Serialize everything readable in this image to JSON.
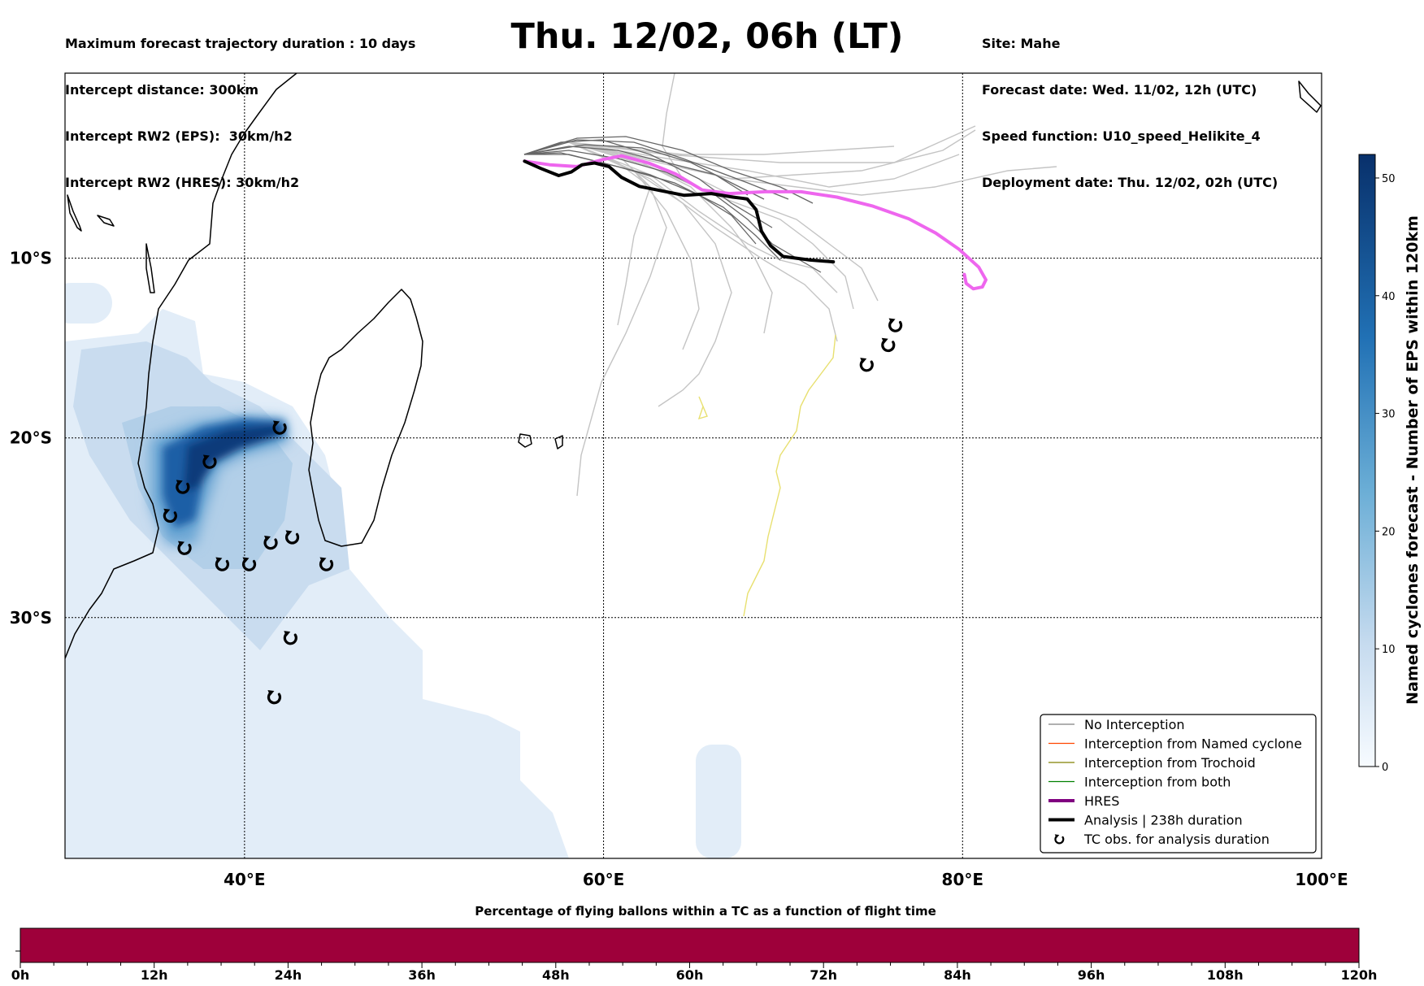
{
  "header": {
    "left_lines": [
      "Maximum forecast trajectory duration : 10 days",
      "Intercept distance: 300km",
      "Intercept RW2 (EPS):  30km/h2",
      "Intercept RW2 (HRES): 30km/h2"
    ],
    "title": "Thu. 12/02, 06h (LT)",
    "right_lines": [
      "Site: Mahe",
      "Forecast date: Wed. 11/02, 12h (UTC)",
      "Speed function: U10_speed_Helikite_4",
      "Deployment date: Thu. 12/02, 02h (UTC)"
    ]
  },
  "map": {
    "lon_range": [
      30,
      100
    ],
    "lat_range": [
      -43.4,
      0.3
    ],
    "lon_ticks": [
      {
        "value": 40,
        "label": "40°E"
      },
      {
        "value": 60,
        "label": "60°E"
      },
      {
        "value": 80,
        "label": "80°E"
      },
      {
        "value": 100,
        "label": "100°E"
      }
    ],
    "lat_ticks": [
      {
        "value": -10,
        "label": "10°S"
      },
      {
        "value": -20,
        "label": "20°S"
      },
      {
        "value": -30,
        "label": "30°S"
      }
    ],
    "hres_track": [
      [
        55.6,
        -4.6
      ],
      [
        57,
        -4.8
      ],
      [
        58.5,
        -4.9
      ],
      [
        60,
        -4.5
      ],
      [
        61,
        -4.3
      ],
      [
        62.5,
        -4.7
      ],
      [
        64,
        -5.3
      ],
      [
        65.5,
        -6.2
      ],
      [
        67,
        -6.4
      ],
      [
        69,
        -6.3
      ],
      [
        71,
        -6.3
      ],
      [
        73,
        -6.6
      ],
      [
        75,
        -7.1
      ],
      [
        77,
        -7.8
      ],
      [
        78.5,
        -8.6
      ],
      [
        79.8,
        -9.5
      ],
      [
        80.9,
        -10.5
      ],
      [
        81.3,
        -11.2
      ],
      [
        81.1,
        -11.6
      ],
      [
        80.6,
        -11.7
      ],
      [
        80.2,
        -11.4
      ],
      [
        80.1,
        -10.9
      ]
    ],
    "analysis_track": [
      [
        55.6,
        -4.6
      ],
      [
        56.5,
        -5.0
      ],
      [
        57.5,
        -5.4
      ],
      [
        58.2,
        -5.2
      ],
      [
        58.8,
        -4.8
      ],
      [
        59.5,
        -4.7
      ],
      [
        60.3,
        -4.9
      ],
      [
        61,
        -5.5
      ],
      [
        62,
        -6.0
      ],
      [
        63.5,
        -6.3
      ],
      [
        64.5,
        -6.5
      ],
      [
        66,
        -6.4
      ],
      [
        67.2,
        -6.6
      ],
      [
        68,
        -6.7
      ],
      [
        68.5,
        -7.3
      ],
      [
        68.8,
        -8.5
      ],
      [
        69.3,
        -9.3
      ],
      [
        70,
        -9.9
      ],
      [
        71.5,
        -10.1
      ],
      [
        72.8,
        -10.2
      ]
    ],
    "tc_obs": [
      [
        42,
        -19.4
      ],
      [
        38.1,
        -21.3
      ],
      [
        36.6,
        -22.7
      ],
      [
        35.9,
        -24.3
      ],
      [
        36.7,
        -26.1
      ],
      [
        38.8,
        -27.0
      ],
      [
        40.3,
        -27.0
      ],
      [
        41.5,
        -25.8
      ],
      [
        42.7,
        -25.5
      ],
      [
        44.6,
        -27.0
      ],
      [
        42.6,
        -31.1
      ],
      [
        41.7,
        -34.4
      ],
      [
        74.7,
        -15.9
      ],
      [
        75.9,
        -14.8
      ],
      [
        76.3,
        -13.7
      ]
    ]
  },
  "legend": {
    "items": [
      {
        "label": "No Interception",
        "color": "#808080",
        "style": "thin"
      },
      {
        "label": "Interception from Named cyclone",
        "color": "#ff4500",
        "style": "thin"
      },
      {
        "label": "Interception from Trochoid",
        "color": "#808000",
        "style": "thin"
      },
      {
        "label": "Interception from both",
        "color": "#008000",
        "style": "thin"
      },
      {
        "label": "HRES",
        "color": "#800080",
        "style": "thick"
      },
      {
        "label": "Analysis | 238h duration",
        "color": "#000000",
        "style": "thick"
      },
      {
        "label": "TC obs. for analysis duration",
        "color": "#000000",
        "style": "symbol"
      }
    ]
  },
  "colorbar_right": {
    "label": "Named cyclones forecast - Number of EPS within 120km",
    "range": [
      0,
      52
    ],
    "ticks": [
      "0",
      "10",
      "20",
      "30",
      "40",
      "50"
    ],
    "color_low": "#f7fbff",
    "color_high": "#08306b"
  },
  "colorbar_bottom": {
    "title": "Percentage of flying ballons within a TC as a function of flight time",
    "fill_color": "#9e003a",
    "ticks": [
      "0h",
      "12h",
      "24h",
      "36h",
      "48h",
      "60h",
      "72h",
      "84h",
      "96h",
      "108h",
      "120h"
    ]
  },
  "colors": {
    "hres": "#ee66ee",
    "analysis": "#000000",
    "eps_no_interception": "#808080",
    "trochoid_track": "#e8e070",
    "grid": "#000000"
  }
}
